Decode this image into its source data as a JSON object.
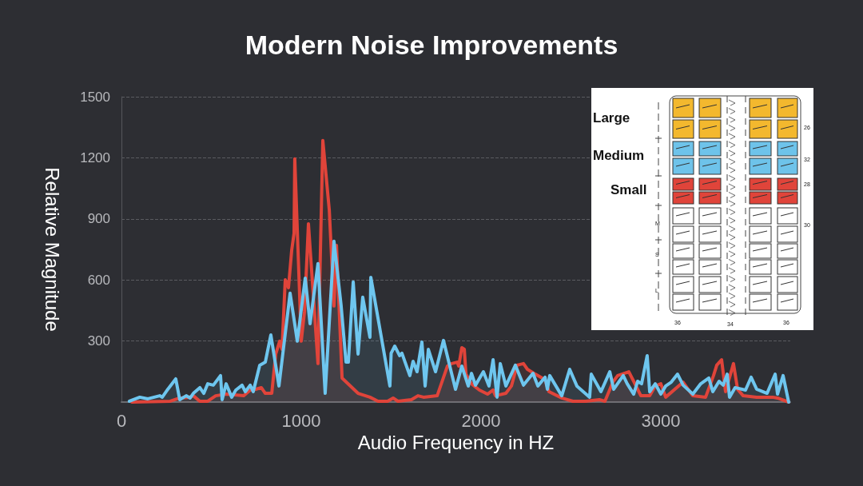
{
  "chart_data": {
    "type": "area",
    "title": "Modern Noise Improvements",
    "xlabel": "Audio Frequency in HZ",
    "ylabel": "Relative Magnitude",
    "xlim": [
      0,
      3720
    ],
    "xticks": [
      0,
      1000,
      2000,
      3000
    ],
    "ylim": [
      0,
      1500
    ],
    "yticks": [
      {
        "value": 0,
        "label": null
      },
      300,
      600,
      900,
      1200,
      1500
    ],
    "grid": "y",
    "marker": "none",
    "annotations": [
      "Large",
      "Medium",
      "Small",
      "26",
      "32",
      "28",
      "30",
      "M",
      "S",
      "L",
      "36",
      "34",
      "36"
    ],
    "series": [
      {
        "color": "#e0443a",
        "x": [
          58,
          271,
          324,
          378,
          400,
          436,
          480,
          524,
          582,
          680,
          716,
          747,
          778,
          800,
          836,
          858,
          880,
          893,
          911,
          929,
          947,
          960,
          964,
          1000,
          1018,
          1040,
          1093,
          1120,
          1156,
          1182,
          1196,
          1227,
          1316,
          1382,
          1427,
          1480,
          1511,
          1538,
          1613,
          1649,
          1680,
          1756,
          1813,
          1836,
          1867,
          1876,
          1893,
          1907,
          1916,
          1947,
          1991,
          2036,
          2067,
          2080,
          2138,
          2169,
          2200,
          2236,
          2258,
          2302,
          2356,
          2378,
          2449,
          2511,
          2582,
          2658,
          2689,
          2733,
          2760,
          2822,
          2849,
          2889,
          2938,
          2969,
          3000,
          3027,
          3124,
          3178,
          3249,
          3293,
          3311,
          3338,
          3360,
          3404,
          3427,
          3458,
          3533,
          3622,
          3649,
          3711
        ],
        "values": [
          0,
          4,
          20,
          24,
          31,
          4,
          4,
          31,
          39,
          31,
          59,
          63,
          71,
          43,
          43,
          236,
          299,
          259,
          601,
          562,
          747,
          829,
          1195,
          299,
          444,
          876,
          189,
          1285,
          943,
          472,
          770,
          118,
          43,
          24,
          4,
          4,
          20,
          4,
          12,
          31,
          24,
          31,
          177,
          189,
          196,
          177,
          267,
          259,
          137,
          90,
          59,
          39,
          59,
          31,
          43,
          79,
          181,
          189,
          161,
          137,
          110,
          51,
          20,
          4,
          4,
          12,
          4,
          98,
          130,
          149,
          102,
          31,
          31,
          79,
          90,
          24,
          98,
          31,
          24,
          130,
          181,
          208,
          51,
          189,
          63,
          31,
          24,
          24,
          20,
          0
        ]
      },
      {
        "color": "#6ec6ef",
        "x": [
          44,
          102,
          147,
          213,
          227,
          258,
          302,
          324,
          360,
          382,
          400,
          436,
          458,
          480,
          511,
          551,
          560,
          582,
          613,
          636,
          671,
          689,
          716,
          733,
          769,
          800,
          831,
          876,
          938,
          978,
          1022,
          1049,
          1093,
          1133,
          1182,
          1222,
          1249,
          1262,
          1289,
          1316,
          1342,
          1382,
          1387,
          1493,
          1500,
          1520,
          1547,
          1560,
          1604,
          1622,
          1644,
          1671,
          1689,
          1707,
          1747,
          1791,
          1858,
          1893,
          1929,
          1947,
          1969,
          2013,
          2044,
          2067,
          2089,
          2107,
          2138,
          2191,
          2236,
          2289,
          2316,
          2356,
          2369,
          2382,
          2449,
          2493,
          2533,
          2604,
          2613,
          2667,
          2716,
          2738,
          2791,
          2813,
          2849,
          2871,
          2893,
          2924,
          2938,
          2969,
          3000,
          3027,
          3058,
          3093,
          3124,
          3178,
          3222,
          3267,
          3289,
          3324,
          3347,
          3369,
          3382,
          3413,
          3471,
          3502,
          3533,
          3591,
          3636,
          3649,
          3680,
          3711
        ],
        "values": [
          4,
          24,
          16,
          31,
          24,
          63,
          114,
          12,
          31,
          20,
          43,
          71,
          43,
          90,
          83,
          130,
          12,
          90,
          24,
          59,
          83,
          51,
          83,
          51,
          181,
          196,
          330,
          79,
          535,
          299,
          609,
          385,
          680,
          43,
          790,
          472,
          196,
          196,
          590,
          236,
          515,
          318,
          613,
          79,
          240,
          275,
          228,
          240,
          130,
          200,
          149,
          295,
          79,
          259,
          149,
          303,
          63,
          177,
          79,
          141,
          83,
          149,
          79,
          208,
          24,
          189,
          79,
          181,
          83,
          141,
          79,
          122,
          63,
          130,
          31,
          161,
          79,
          24,
          137,
          51,
          149,
          63,
          130,
          90,
          39,
          102,
          90,
          228,
          51,
          90,
          39,
          79,
          98,
          137,
          83,
          39,
          90,
          118,
          51,
          102,
          83,
          137,
          24,
          71,
          59,
          122,
          63,
          43,
          137,
          39,
          130,
          0
        ]
      }
    ]
  }
}
